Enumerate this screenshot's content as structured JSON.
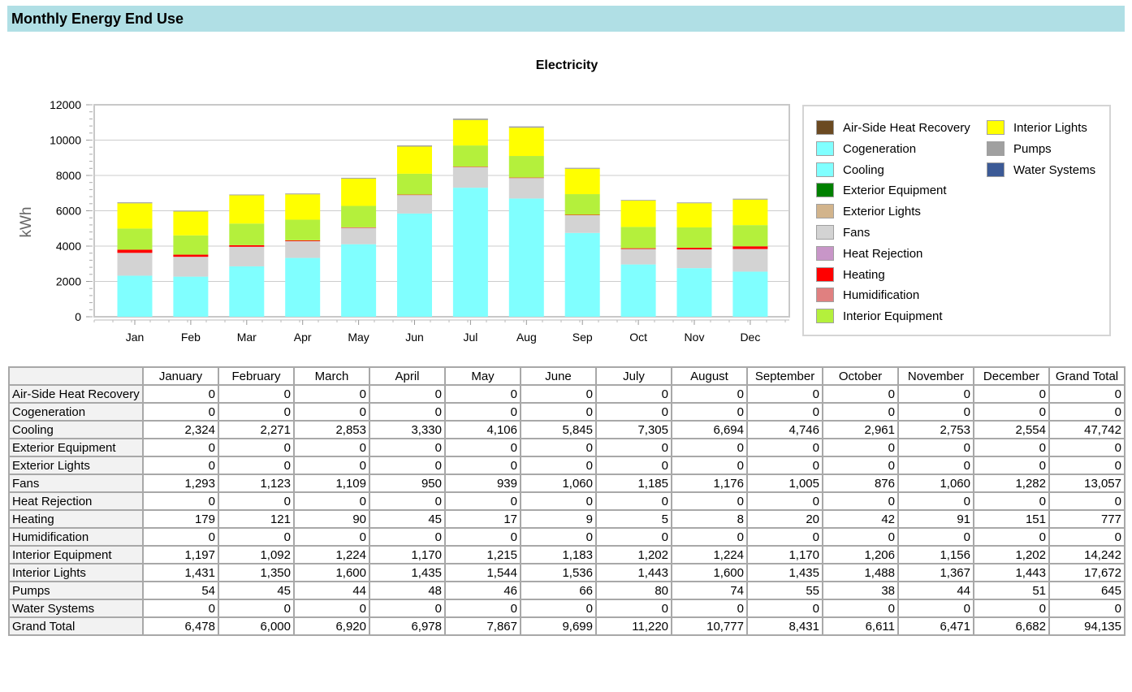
{
  "page": {
    "title": "Monthly Energy End Use"
  },
  "chart_data": {
    "type": "bar",
    "stacked": true,
    "title": "Electricity",
    "ylabel": "kWh",
    "xlabel": "",
    "ylim": [
      0,
      12000
    ],
    "yticks": [
      0,
      2000,
      4000,
      6000,
      8000,
      10000,
      12000
    ],
    "grid": true,
    "legend_position": "right",
    "categories": [
      "Jan",
      "Feb",
      "Mar",
      "Apr",
      "May",
      "Jun",
      "Jul",
      "Aug",
      "Sep",
      "Oct",
      "Nov",
      "Dec"
    ],
    "series": [
      {
        "name": "Air-Side Heat Recovery",
        "color": "#6b4a22",
        "values": [
          0,
          0,
          0,
          0,
          0,
          0,
          0,
          0,
          0,
          0,
          0,
          0
        ]
      },
      {
        "name": "Cogeneration",
        "color": "#80ffff",
        "values": [
          0,
          0,
          0,
          0,
          0,
          0,
          0,
          0,
          0,
          0,
          0,
          0
        ]
      },
      {
        "name": "Cooling",
        "color": "#80ffff",
        "values": [
          2324,
          2271,
          2853,
          3330,
          4106,
          5845,
          7305,
          6694,
          4746,
          2961,
          2753,
          2554
        ]
      },
      {
        "name": "Exterior Equipment",
        "color": "#008000",
        "values": [
          0,
          0,
          0,
          0,
          0,
          0,
          0,
          0,
          0,
          0,
          0,
          0
        ]
      },
      {
        "name": "Exterior Lights",
        "color": "#d2b48c",
        "values": [
          0,
          0,
          0,
          0,
          0,
          0,
          0,
          0,
          0,
          0,
          0,
          0
        ]
      },
      {
        "name": "Fans",
        "color": "#d3d3d3",
        "values": [
          1293,
          1123,
          1109,
          950,
          939,
          1060,
          1185,
          1176,
          1005,
          876,
          1060,
          1282
        ]
      },
      {
        "name": "Heat Rejection",
        "color": "#c896c8",
        "values": [
          0,
          0,
          0,
          0,
          0,
          0,
          0,
          0,
          0,
          0,
          0,
          0
        ]
      },
      {
        "name": "Heating",
        "color": "#ff0000",
        "values": [
          179,
          121,
          90,
          45,
          17,
          9,
          5,
          8,
          20,
          42,
          91,
          151
        ]
      },
      {
        "name": "Humidification",
        "color": "#e08080",
        "values": [
          0,
          0,
          0,
          0,
          0,
          0,
          0,
          0,
          0,
          0,
          0,
          0
        ]
      },
      {
        "name": "Interior Equipment",
        "color": "#b4f03c",
        "values": [
          1197,
          1092,
          1224,
          1170,
          1215,
          1183,
          1202,
          1224,
          1170,
          1206,
          1156,
          1202
        ]
      },
      {
        "name": "Interior Lights",
        "color": "#ffff00",
        "values": [
          1431,
          1350,
          1600,
          1435,
          1544,
          1536,
          1443,
          1600,
          1435,
          1488,
          1367,
          1443
        ]
      },
      {
        "name": "Pumps",
        "color": "#a0a0a0",
        "values": [
          54,
          45,
          44,
          48,
          46,
          66,
          80,
          74,
          55,
          38,
          44,
          51
        ]
      },
      {
        "name": "Water Systems",
        "color": "#3c5a96",
        "values": [
          0,
          0,
          0,
          0,
          0,
          0,
          0,
          0,
          0,
          0,
          0,
          0
        ]
      }
    ]
  },
  "table": {
    "columns": [
      "January",
      "February",
      "March",
      "April",
      "May",
      "June",
      "July",
      "August",
      "September",
      "October",
      "November",
      "December",
      "Grand Total"
    ],
    "rows": [
      {
        "label": "Air-Side Heat Recovery",
        "cells": [
          "0",
          "0",
          "0",
          "0",
          "0",
          "0",
          "0",
          "0",
          "0",
          "0",
          "0",
          "0",
          "0"
        ]
      },
      {
        "label": "Cogeneration",
        "cells": [
          "0",
          "0",
          "0",
          "0",
          "0",
          "0",
          "0",
          "0",
          "0",
          "0",
          "0",
          "0",
          "0"
        ]
      },
      {
        "label": "Cooling",
        "cells": [
          "2,324",
          "2,271",
          "2,853",
          "3,330",
          "4,106",
          "5,845",
          "7,305",
          "6,694",
          "4,746",
          "2,961",
          "2,753",
          "2,554",
          "47,742"
        ]
      },
      {
        "label": "Exterior Equipment",
        "cells": [
          "0",
          "0",
          "0",
          "0",
          "0",
          "0",
          "0",
          "0",
          "0",
          "0",
          "0",
          "0",
          "0"
        ]
      },
      {
        "label": "Exterior Lights",
        "cells": [
          "0",
          "0",
          "0",
          "0",
          "0",
          "0",
          "0",
          "0",
          "0",
          "0",
          "0",
          "0",
          "0"
        ]
      },
      {
        "label": "Fans",
        "cells": [
          "1,293",
          "1,123",
          "1,109",
          "950",
          "939",
          "1,060",
          "1,185",
          "1,176",
          "1,005",
          "876",
          "1,060",
          "1,282",
          "13,057"
        ]
      },
      {
        "label": "Heat Rejection",
        "cells": [
          "0",
          "0",
          "0",
          "0",
          "0",
          "0",
          "0",
          "0",
          "0",
          "0",
          "0",
          "0",
          "0"
        ]
      },
      {
        "label": "Heating",
        "cells": [
          "179",
          "121",
          "90",
          "45",
          "17",
          "9",
          "5",
          "8",
          "20",
          "42",
          "91",
          "151",
          "777"
        ]
      },
      {
        "label": "Humidification",
        "cells": [
          "0",
          "0",
          "0",
          "0",
          "0",
          "0",
          "0",
          "0",
          "0",
          "0",
          "0",
          "0",
          "0"
        ]
      },
      {
        "label": "Interior Equipment",
        "cells": [
          "1,197",
          "1,092",
          "1,224",
          "1,170",
          "1,215",
          "1,183",
          "1,202",
          "1,224",
          "1,170",
          "1,206",
          "1,156",
          "1,202",
          "14,242"
        ]
      },
      {
        "label": "Interior Lights",
        "cells": [
          "1,431",
          "1,350",
          "1,600",
          "1,435",
          "1,544",
          "1,536",
          "1,443",
          "1,600",
          "1,435",
          "1,488",
          "1,367",
          "1,443",
          "17,672"
        ]
      },
      {
        "label": "Pumps",
        "cells": [
          "54",
          "45",
          "44",
          "48",
          "46",
          "66",
          "80",
          "74",
          "55",
          "38",
          "44",
          "51",
          "645"
        ]
      },
      {
        "label": "Water Systems",
        "cells": [
          "0",
          "0",
          "0",
          "0",
          "0",
          "0",
          "0",
          "0",
          "0",
          "0",
          "0",
          "0",
          "0"
        ]
      },
      {
        "label": "Grand Total",
        "cells": [
          "6,478",
          "6,000",
          "6,920",
          "6,978",
          "7,867",
          "9,699",
          "11,220",
          "10,777",
          "8,431",
          "6,611",
          "6,471",
          "6,682",
          "94,135"
        ]
      }
    ]
  }
}
